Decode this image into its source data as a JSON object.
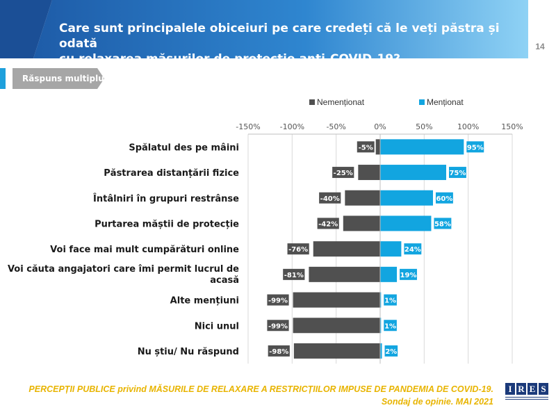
{
  "header": {
    "title_line1": "Care sunt principalele obiceiuri pe care credeți că le veți păstra și odată",
    "title_line2": "cu relaxarea măsurilor de protecție anti-COVID-19?",
    "page_number": "14"
  },
  "badge": {
    "label": "Răspuns multiplu"
  },
  "colors": {
    "header_dark": "#1e5ca8",
    "header_light": "#7ec8f0",
    "negative": "#505050",
    "positive": "#12a5e0",
    "footer": "#e8b400",
    "badge_bg": "#a6a6a6"
  },
  "chart_data": {
    "type": "bar",
    "orientation": "horizontal-diverging",
    "xlim": [
      -150,
      150
    ],
    "ticks": [
      -150,
      -100,
      -50,
      0,
      50,
      100,
      150
    ],
    "tick_labels": [
      "-150%",
      "-100%",
      "-50%",
      "0%",
      "50%",
      "100%",
      "150%"
    ],
    "categories": [
      [
        "Spălatul des pe mâini"
      ],
      [
        "Păstrarea distanțării fizice"
      ],
      [
        "Întâlniri în grupuri restrânse"
      ],
      [
        "Purtarea măștii de protecție"
      ],
      [
        "Voi face mai mult cumpărături online"
      ],
      [
        "Voi căuta angajatori care îmi permit lucrul de",
        "acasă"
      ],
      [
        "Alte mențiuni"
      ],
      [
        "Nici unul"
      ],
      [
        "Nu știu/ Nu răspund"
      ]
    ],
    "series": [
      {
        "name": "Nemenționat",
        "values": [
          -5,
          -25,
          -40,
          -42,
          -76,
          -81,
          -99,
          -99,
          -98
        ],
        "labels": [
          "-5%",
          "-25%",
          "-40%",
          "-42%",
          "-76%",
          "-81%",
          "-99%",
          "-99%",
          "-98%"
        ]
      },
      {
        "name": "Menționat",
        "values": [
          95,
          75,
          60,
          58,
          24,
          19,
          1,
          1,
          2
        ],
        "labels": [
          "95%",
          "75%",
          "60%",
          "58%",
          "24%",
          "19%",
          "1%",
          "1%",
          "2%"
        ]
      }
    ],
    "legend_position": "top",
    "grid": "vertical"
  },
  "footer": {
    "line1": "PERCEPȚII PUBLICE privind MĂSURILE DE RELAXARE A RESTRICȚIILOR IMPUSE  DE PANDEMIA DE COVID-19.",
    "line2": "Sondaj de opinie. MAI 2021"
  },
  "logo": {
    "letters": [
      "I",
      "R",
      "E",
      "S"
    ]
  }
}
